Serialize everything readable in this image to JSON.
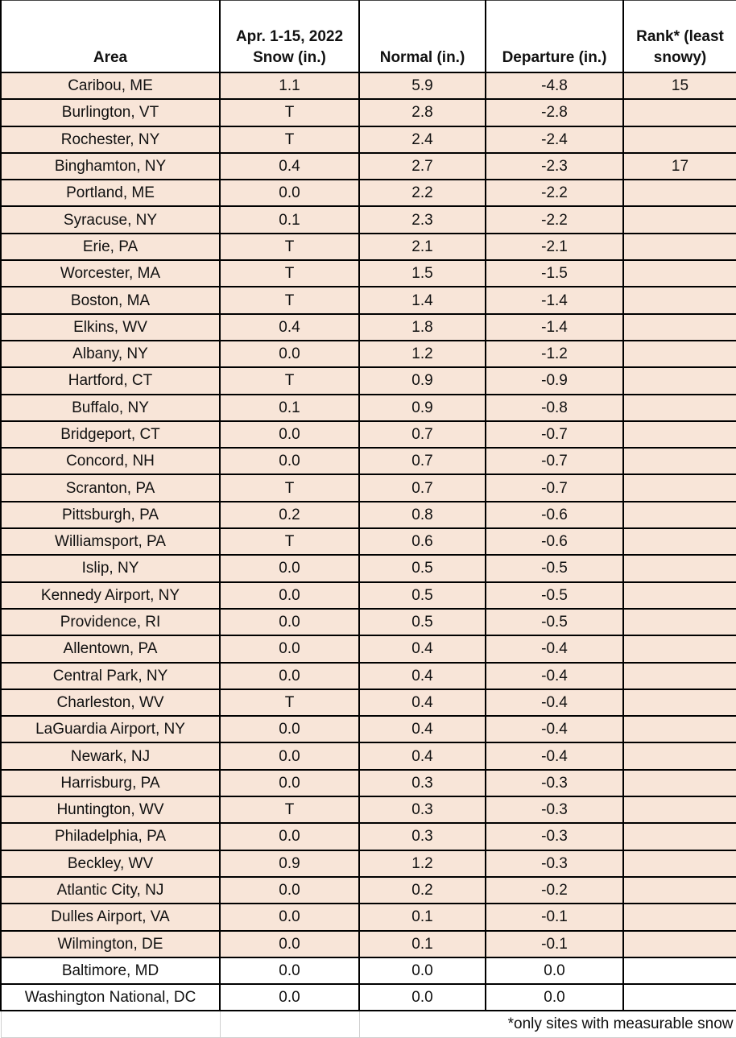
{
  "table": {
    "headers": [
      "Area",
      "Apr. 1-15, 2022\nSnow (in.)",
      "Normal (in.)",
      "Departure (in.)",
      "Rank* (least\nsnowy)"
    ],
    "highlight_color": "#F8E5D8",
    "rows": [
      {
        "area": "Caribou, ME",
        "snow": "1.1",
        "normal": "5.9",
        "departure": "-4.8",
        "rank": "15",
        "shaded": true
      },
      {
        "area": "Burlington, VT",
        "snow": "T",
        "normal": "2.8",
        "departure": "-2.8",
        "rank": "",
        "shaded": true
      },
      {
        "area": "Rochester, NY",
        "snow": "T",
        "normal": "2.4",
        "departure": "-2.4",
        "rank": "",
        "shaded": true
      },
      {
        "area": "Binghamton, NY",
        "snow": "0.4",
        "normal": "2.7",
        "departure": "-2.3",
        "rank": "17",
        "shaded": true
      },
      {
        "area": "Portland, ME",
        "snow": "0.0",
        "normal": "2.2",
        "departure": "-2.2",
        "rank": "",
        "shaded": true
      },
      {
        "area": "Syracuse, NY",
        "snow": "0.1",
        "normal": "2.3",
        "departure": "-2.2",
        "rank": "",
        "shaded": true
      },
      {
        "area": "Erie, PA",
        "snow": "T",
        "normal": "2.1",
        "departure": "-2.1",
        "rank": "",
        "shaded": true
      },
      {
        "area": "Worcester, MA",
        "snow": "T",
        "normal": "1.5",
        "departure": "-1.5",
        "rank": "",
        "shaded": true
      },
      {
        "area": "Boston, MA",
        "snow": "T",
        "normal": "1.4",
        "departure": "-1.4",
        "rank": "",
        "shaded": true
      },
      {
        "area": "Elkins, WV",
        "snow": "0.4",
        "normal": "1.8",
        "departure": "-1.4",
        "rank": "",
        "shaded": true
      },
      {
        "area": "Albany, NY",
        "snow": "0.0",
        "normal": "1.2",
        "departure": "-1.2",
        "rank": "",
        "shaded": true
      },
      {
        "area": "Hartford, CT",
        "snow": "T",
        "normal": "0.9",
        "departure": "-0.9",
        "rank": "",
        "shaded": true
      },
      {
        "area": "Buffalo, NY",
        "snow": "0.1",
        "normal": "0.9",
        "departure": "-0.8",
        "rank": "",
        "shaded": true
      },
      {
        "area": "Bridgeport, CT",
        "snow": "0.0",
        "normal": "0.7",
        "departure": "-0.7",
        "rank": "",
        "shaded": true
      },
      {
        "area": "Concord, NH",
        "snow": "0.0",
        "normal": "0.7",
        "departure": "-0.7",
        "rank": "",
        "shaded": true
      },
      {
        "area": "Scranton, PA",
        "snow": "T",
        "normal": "0.7",
        "departure": "-0.7",
        "rank": "",
        "shaded": true
      },
      {
        "area": "Pittsburgh, PA",
        "snow": "0.2",
        "normal": "0.8",
        "departure": "-0.6",
        "rank": "",
        "shaded": true
      },
      {
        "area": "Williamsport, PA",
        "snow": "T",
        "normal": "0.6",
        "departure": "-0.6",
        "rank": "",
        "shaded": true
      },
      {
        "area": "Islip, NY",
        "snow": "0.0",
        "normal": "0.5",
        "departure": "-0.5",
        "rank": "",
        "shaded": true
      },
      {
        "area": "Kennedy Airport, NY",
        "snow": "0.0",
        "normal": "0.5",
        "departure": "-0.5",
        "rank": "",
        "shaded": true
      },
      {
        "area": "Providence, RI",
        "snow": "0.0",
        "normal": "0.5",
        "departure": "-0.5",
        "rank": "",
        "shaded": true
      },
      {
        "area": "Allentown, PA",
        "snow": "0.0",
        "normal": "0.4",
        "departure": "-0.4",
        "rank": "",
        "shaded": true
      },
      {
        "area": "Central Park, NY",
        "snow": "0.0",
        "normal": "0.4",
        "departure": "-0.4",
        "rank": "",
        "shaded": true
      },
      {
        "area": "Charleston, WV",
        "snow": "T",
        "normal": "0.4",
        "departure": "-0.4",
        "rank": "",
        "shaded": true
      },
      {
        "area": "LaGuardia Airport, NY",
        "snow": "0.0",
        "normal": "0.4",
        "departure": "-0.4",
        "rank": "",
        "shaded": true
      },
      {
        "area": "Newark, NJ",
        "snow": "0.0",
        "normal": "0.4",
        "departure": "-0.4",
        "rank": "",
        "shaded": true
      },
      {
        "area": "Harrisburg, PA",
        "snow": "0.0",
        "normal": "0.3",
        "departure": "-0.3",
        "rank": "",
        "shaded": true
      },
      {
        "area": "Huntington, WV",
        "snow": "T",
        "normal": "0.3",
        "departure": "-0.3",
        "rank": "",
        "shaded": true
      },
      {
        "area": "Philadelphia, PA",
        "snow": "0.0",
        "normal": "0.3",
        "departure": "-0.3",
        "rank": "",
        "shaded": true
      },
      {
        "area": "Beckley, WV",
        "snow": "0.9",
        "normal": "1.2",
        "departure": "-0.3",
        "rank": "",
        "shaded": true
      },
      {
        "area": "Atlantic City, NJ",
        "snow": "0.0",
        "normal": "0.2",
        "departure": "-0.2",
        "rank": "",
        "shaded": true
      },
      {
        "area": "Dulles Airport, VA",
        "snow": "0.0",
        "normal": "0.1",
        "departure": "-0.1",
        "rank": "",
        "shaded": true
      },
      {
        "area": "Wilmington, DE",
        "snow": "0.0",
        "normal": "0.1",
        "departure": "-0.1",
        "rank": "",
        "shaded": true
      },
      {
        "area": "Baltimore, MD",
        "snow": "0.0",
        "normal": "0.0",
        "departure": "0.0",
        "rank": "",
        "shaded": false
      },
      {
        "area": "Washington National, DC",
        "snow": "0.0",
        "normal": "0.0",
        "departure": "0.0",
        "rank": "",
        "shaded": false
      }
    ],
    "footnote": "*only sites with measurable snow"
  }
}
